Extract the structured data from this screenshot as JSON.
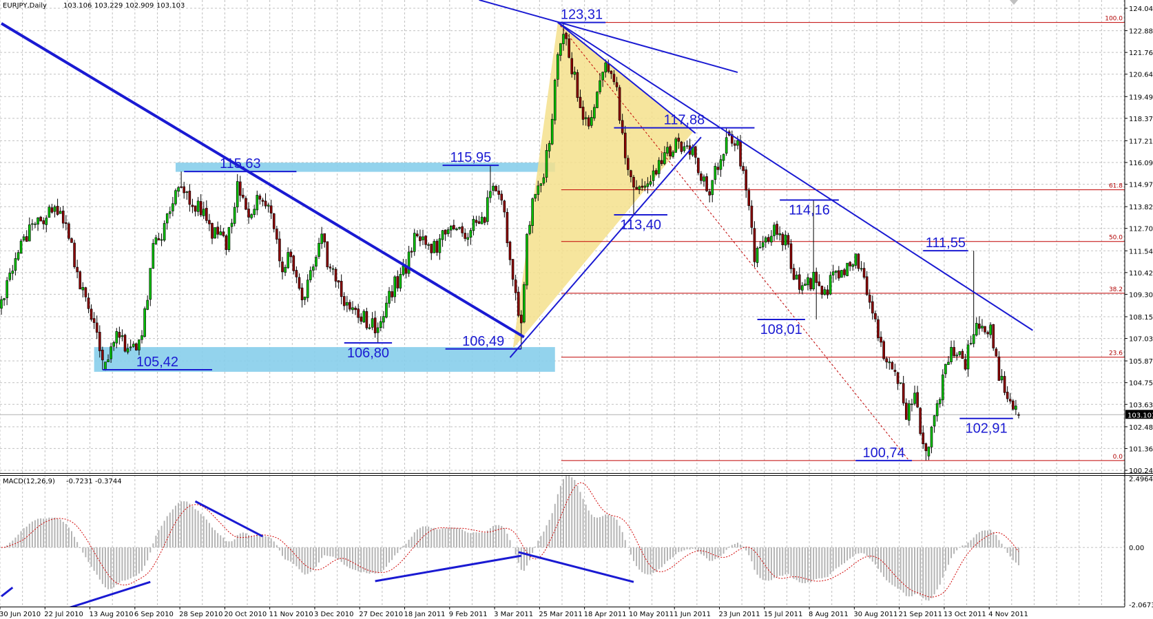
{
  "header": {
    "symbol": "EURJPY,Daily",
    "open": "103.106",
    "high": "103.229",
    "low": "102.909",
    "close": "103.103"
  },
  "chart_data": [
    {
      "type": "candlestick",
      "symbol": "EURJPY",
      "timeframe": "Daily",
      "ylim": [
        100.24,
        124.04
      ],
      "y_ticks": [
        "124.040",
        "122.885",
        "121.765",
        "120.645",
        "119.490",
        "118.370",
        "117.215",
        "116.095",
        "114.975",
        "113.820",
        "112.700",
        "111.545",
        "110.425",
        "109.305",
        "108.150",
        "107.030",
        "105.875",
        "104.755",
        "103.635",
        "102.480",
        "101.360",
        "100.240"
      ],
      "x_ticks": [
        "30 Jun 2010",
        "22 Jul 2010",
        "13 Aug 2010",
        "6 Sep 2010",
        "28 Sep 2010",
        "20 Oct 2010",
        "11 Nov 2010",
        "3 Dec 2010",
        "27 Dec 2010",
        "18 Jan 2011",
        "9 Feb 2011",
        "3 Mar 2011",
        "25 Mar 2011",
        "18 Apr 2011",
        "10 May 2011",
        "1 Jun 2011",
        "23 Jun 2011",
        "15 Jul 2011",
        "8 Aug 2011",
        "30 Aug 2011",
        "21 Sep 2011",
        "13 Oct 2011",
        "4 Nov 2011"
      ],
      "last_price": "103.103",
      "last_bar": {
        "date": "2011-11-18",
        "open": 103.106,
        "high": 103.229,
        "low": 102.909,
        "close": 103.103
      },
      "grid": true,
      "path": [
        [
          "2010-06-30",
          108.6
        ],
        [
          "2010-07-08",
          111.5
        ],
        [
          "2010-07-14",
          112.8
        ],
        [
          "2010-07-22",
          113.3
        ],
        [
          "2010-07-28",
          113.6
        ],
        [
          "2010-08-03",
          112.2
        ],
        [
          "2010-08-09",
          109.5
        ],
        [
          "2010-08-13",
          108.4
        ],
        [
          "2010-08-19",
          105.8
        ],
        [
          "2010-08-27",
          107.2
        ],
        [
          "2010-09-02",
          106.2
        ],
        [
          "2010-09-08",
          107.3
        ],
        [
          "2010-09-14",
          111.5
        ],
        [
          "2010-09-20",
          112.8
        ],
        [
          "2010-09-28",
          115.2
        ],
        [
          "2010-10-04",
          114.0
        ],
        [
          "2010-10-08",
          113.5
        ],
        [
          "2010-10-14",
          112.3
        ],
        [
          "2010-10-20",
          112.0
        ],
        [
          "2010-10-26",
          114.8
        ],
        [
          "2010-11-01",
          113.0
        ],
        [
          "2010-11-05",
          114.6
        ],
        [
          "2010-11-11",
          113.5
        ],
        [
          "2010-11-17",
          110.5
        ],
        [
          "2010-11-22",
          111.6
        ],
        [
          "2010-11-26",
          109.0
        ],
        [
          "2010-12-01",
          110.2
        ],
        [
          "2010-12-07",
          112.0
        ],
        [
          "2010-12-13",
          110.3
        ],
        [
          "2010-12-17",
          109.0
        ],
        [
          "2010-12-23",
          108.2
        ],
        [
          "2010-12-29",
          108.0
        ],
        [
          "2011-01-04",
          107.4
        ],
        [
          "2011-01-10",
          109.3
        ],
        [
          "2011-01-18",
          110.8
        ],
        [
          "2011-01-24",
          112.7
        ],
        [
          "2011-01-28",
          111.6
        ],
        [
          "2011-02-03",
          112.0
        ],
        [
          "2011-02-09",
          112.6
        ],
        [
          "2011-02-15",
          112.3
        ],
        [
          "2011-02-21",
          112.8
        ],
        [
          "2011-02-25",
          113.0
        ],
        [
          "2011-03-01",
          115.0
        ],
        [
          "2011-03-07",
          114.2
        ],
        [
          "2011-03-10",
          111.5
        ],
        [
          "2011-03-11",
          110.0
        ],
        [
          "2011-03-16",
          107.5
        ],
        [
          "2011-03-18",
          112.0
        ],
        [
          "2011-03-22",
          114.0
        ],
        [
          "2011-03-28",
          115.3
        ],
        [
          "2011-03-31",
          118.5
        ],
        [
          "2011-04-04",
          121.5
        ],
        [
          "2011-04-06",
          122.8
        ],
        [
          "2011-04-12",
          120.5
        ],
        [
          "2011-04-18",
          118.0
        ],
        [
          "2011-04-22",
          119.5
        ],
        [
          "2011-04-27",
          120.8
        ],
        [
          "2011-05-03",
          119.8
        ],
        [
          "2011-05-06",
          116.3
        ],
        [
          "2011-05-10",
          115.2
        ],
        [
          "2011-05-16",
          114.5
        ],
        [
          "2011-05-20",
          115.4
        ],
        [
          "2011-05-26",
          116.5
        ],
        [
          "2011-06-01",
          117.0
        ],
        [
          "2011-06-07",
          117.2
        ],
        [
          "2011-06-10",
          116.3
        ],
        [
          "2011-06-16",
          114.5
        ],
        [
          "2011-06-21",
          115.5
        ],
        [
          "2011-06-27",
          117.3
        ],
        [
          "2011-07-01",
          116.8
        ],
        [
          "2011-07-06",
          115.0
        ],
        [
          "2011-07-11",
          111.0
        ],
        [
          "2011-07-14",
          112.2
        ],
        [
          "2011-07-20",
          112.5
        ],
        [
          "2011-07-26",
          112.0
        ],
        [
          "2011-08-01",
          110.0
        ],
        [
          "2011-08-05",
          109.8
        ],
        [
          "2011-08-09",
          110.2
        ],
        [
          "2011-08-12",
          109.0
        ],
        [
          "2011-08-18",
          110.2
        ],
        [
          "2011-08-24",
          110.6
        ],
        [
          "2011-08-30",
          111.2
        ],
        [
          "2011-09-02",
          110.0
        ],
        [
          "2011-09-08",
          108.0
        ],
        [
          "2011-09-14",
          105.8
        ],
        [
          "2011-09-20",
          105.0
        ],
        [
          "2011-09-23",
          103.2
        ],
        [
          "2011-09-28",
          103.8
        ],
        [
          "2011-10-04",
          101.2
        ],
        [
          "2011-10-07",
          102.8
        ],
        [
          "2011-10-13",
          105.8
        ],
        [
          "2011-10-19",
          106.6
        ],
        [
          "2011-10-24",
          105.8
        ],
        [
          "2011-10-27",
          107.4
        ],
        [
          "2011-11-01",
          107.9
        ],
        [
          "2011-11-04",
          107.5
        ],
        [
          "2011-11-09",
          105.0
        ],
        [
          "2011-11-14",
          104.0
        ],
        [
          "2011-11-18",
          103.1
        ]
      ],
      "extremes": [
        {
          "date": "2010-08-19",
          "low": 105.42
        },
        {
          "date": "2010-09-28",
          "high": 115.63
        },
        {
          "date": "2011-01-04",
          "low": 106.8
        },
        {
          "date": "2011-03-01",
          "high": 115.95
        },
        {
          "date": "2011-03-16",
          "low": 106.49
        },
        {
          "date": "2011-04-06",
          "high": 123.31
        },
        {
          "date": "2011-05-11",
          "low": 113.4
        },
        {
          "date": "2011-06-27",
          "high": 117.88
        },
        {
          "date": "2011-08-09",
          "high": 114.16
        },
        {
          "date": "2011-08-10",
          "low": 108.01
        },
        {
          "date": "2011-10-04",
          "low": 100.74
        },
        {
          "date": "2011-10-27",
          "high": 111.55
        }
      ],
      "fibonacci": {
        "high": 123.31,
        "low": 100.74,
        "start_date": "2011-04-04",
        "end_date": "2011-09-26",
        "levels": [
          "100.0",
          "61.8",
          "50.0",
          "38.2",
          "23.6",
          "0.0"
        ]
      },
      "triangle": [
        [
          "2011-03-11",
          106.49
        ],
        [
          "2011-04-04",
          123.31
        ],
        [
          "2011-06-09",
          117.65
        ]
      ],
      "zones": [
        {
          "from": "2010-09-24",
          "to": "2011-04-01",
          "low": 115.72,
          "high": 115.98
        },
        {
          "from": "2010-08-16",
          "to": "2011-04-01",
          "low": 105.42,
          "high": 106.48
        }
      ],
      "trendlines": [
        {
          "from": [
            "2010-06-30",
            123.26
          ],
          "to": [
            "2011-03-17",
            107.1
          ],
          "style": "thick"
        },
        {
          "from": [
            "2011-03-10",
            106.05
          ],
          "to": [
            "2011-06-14",
            117.4
          ],
          "style": "normal"
        },
        {
          "from": [
            "2011-04-04",
            123.31
          ],
          "to": [
            "2011-11-25",
            107.45
          ],
          "style": "normal"
        },
        {
          "from": [
            "2011-04-04",
            123.31
          ],
          "to": [
            "2011-06-10",
            117.6
          ],
          "style": "normal"
        },
        {
          "from": [
            "2011-02-23",
            124.47
          ],
          "to": [
            "2011-07-01",
            120.74
          ],
          "style": "normal"
        }
      ],
      "levels": [
        {
          "label": "115,63",
          "price": 115.63,
          "from": "2010-09-29",
          "to": "2010-11-24",
          "label_pos": "above"
        },
        {
          "label": "115,95",
          "price": 115.95,
          "from": "2011-02-04",
          "to": "2011-03-04",
          "label_pos": "above"
        },
        {
          "label": "105,42",
          "price": 105.42,
          "from": "2010-08-19",
          "to": "2010-10-13",
          "label_pos": "above"
        },
        {
          "label": "106,80",
          "price": 106.8,
          "from": "2010-12-17",
          "to": "2011-01-11",
          "label_pos": "below"
        },
        {
          "label": "106,49",
          "price": 106.49,
          "from": "2011-02-07",
          "to": "2011-03-16",
          "label_pos": "above"
        },
        {
          "label": "123,31",
          "price": 123.31,
          "from": "2011-04-04",
          "to": "2011-04-27",
          "label_pos": "above"
        },
        {
          "label": "117,88",
          "price": 117.88,
          "from": "2011-05-02",
          "to": "2011-07-11",
          "label_pos": "above"
        },
        {
          "label": "113,40",
          "price": 113.4,
          "from": "2011-05-02",
          "to": "2011-05-27",
          "label_pos": "below"
        },
        {
          "label": "114,16",
          "price": 114.16,
          "from": "2011-07-22",
          "to": "2011-08-22",
          "label_pos": "below"
        },
        {
          "label": "108,01",
          "price": 108.01,
          "from": "2011-07-12",
          "to": "2011-08-04",
          "label_pos": "below"
        },
        {
          "label": "111,55",
          "price": 111.55,
          "from": "2011-10-03",
          "to": "2011-10-25",
          "label_pos": "above"
        },
        {
          "label": "102,91",
          "price": 102.91,
          "from": "2011-10-20",
          "to": "2011-11-16",
          "label_pos": "below"
        },
        {
          "label": "100,74",
          "price": 100.74,
          "from": "2011-08-30",
          "to": "2011-09-27",
          "label_pos": "above"
        }
      ],
      "colors": {
        "bull": "#00c000",
        "bear": "#8b0000",
        "annotation": "#1a1ad2",
        "zone": "#87ceeb",
        "triangle": "#f5e08c",
        "fib": "#c00000",
        "grid": "#c0c0c0"
      }
    },
    {
      "type": "bar",
      "title": "MACD(12,26,9)",
      "params": [
        12,
        26,
        9
      ],
      "values_shown": [
        "-0.7231",
        "-0.3744"
      ],
      "ylim": [
        -2.0673,
        2.4964
      ],
      "y_ticks": [
        "2.4964",
        "0.00",
        "-2.0673"
      ],
      "trendlines": [
        {
          "from": [
            "2010-06-30",
            -1.77
          ],
          "to": [
            "2010-07-06",
            -1.45
          ]
        },
        {
          "from": [
            "2010-08-02",
            -2.22
          ],
          "to": [
            "2010-09-13",
            -1.25
          ]
        },
        {
          "from": [
            "2010-10-05",
            1.67
          ],
          "to": [
            "2010-11-08",
            0.4
          ]
        },
        {
          "from": [
            "2011-01-03",
            -1.22
          ],
          "to": [
            "2011-03-16",
            -0.3
          ]
        },
        {
          "from": [
            "2011-03-15",
            -0.17
          ],
          "to": [
            "2011-05-11",
            -1.25
          ]
        }
      ],
      "colors": {
        "histogram": "#b4b4b4",
        "signal": "#d00000"
      }
    }
  ]
}
